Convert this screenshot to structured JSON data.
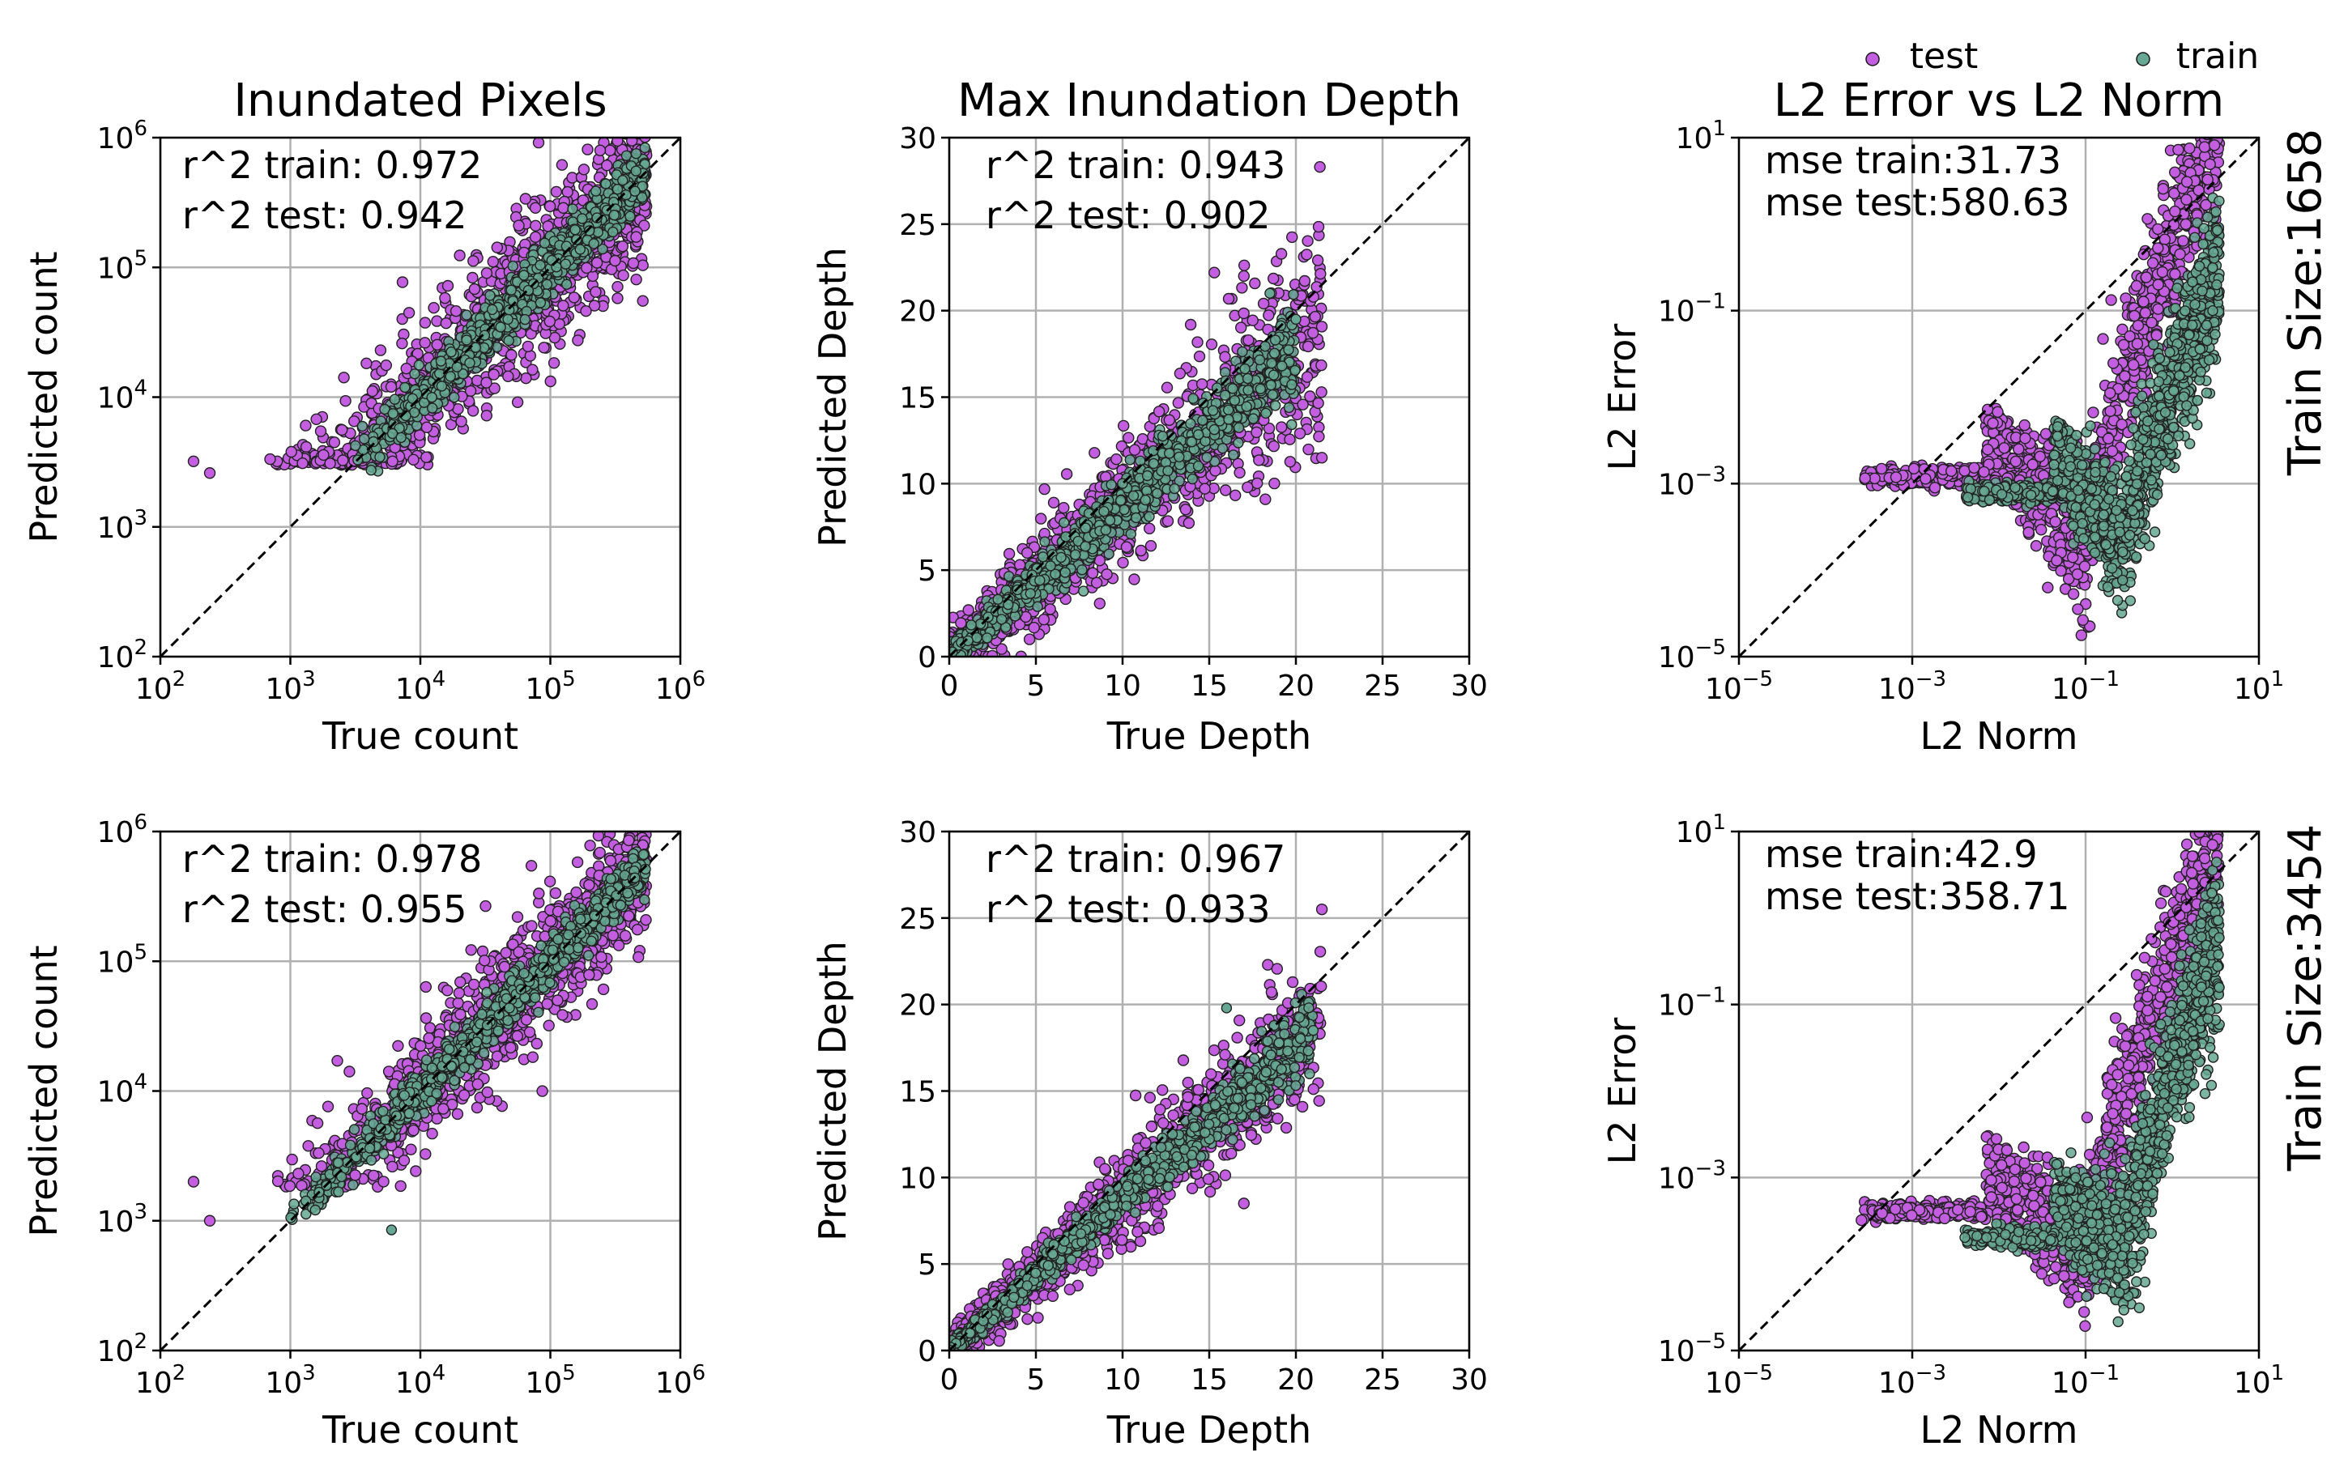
{
  "legend": {
    "position": "top-right",
    "entries": [
      {
        "label": "test",
        "color": "#c45ee0"
      },
      {
        "label": "train",
        "color": "#66a893"
      }
    ]
  },
  "rows": [
    {
      "label": "Train Size:1658"
    },
    {
      "label": "Train Size:3454"
    }
  ],
  "chart_data": [
    {
      "type": "scatter",
      "row": 0,
      "col": 0,
      "title": "Inundated Pixels",
      "xlabel": "True count",
      "ylabel": "Predicted count",
      "scale": "log",
      "xlim": [
        100,
        1000000
      ],
      "ylim": [
        100,
        1000000
      ],
      "xtick_labels": [
        [
          "10",
          "2"
        ],
        [
          "10",
          "3"
        ],
        [
          "10",
          "4"
        ],
        [
          "10",
          "5"
        ],
        [
          "10",
          "6"
        ]
      ],
      "ytick_labels": [
        [
          "10",
          "2"
        ],
        [
          "10",
          "3"
        ],
        [
          "10",
          "4"
        ],
        [
          "10",
          "5"
        ],
        [
          "10",
          "6"
        ]
      ],
      "annotations": [
        "r^2 train: 0.972",
        "r^2 test: 0.942"
      ],
      "grid": true,
      "diagonal": true,
      "series": [
        {
          "name": "test",
          "n": 1100,
          "x_range": [
            600,
            550000
          ],
          "spread": 0.32,
          "floor": 3000,
          "outliers": [
            [
              180,
              3200
            ],
            [
              240,
              2600
            ]
          ]
        },
        {
          "name": "train",
          "n": 1400,
          "x_range": [
            3000,
            540000
          ],
          "spread": 0.1,
          "floor": 2600,
          "outliers": []
        }
      ]
    },
    {
      "type": "scatter",
      "row": 0,
      "col": 1,
      "title": "Max Inundation Depth",
      "xlabel": "True Depth",
      "ylabel": "Predicted Depth",
      "scale": "linear",
      "xlim": [
        0,
        30
      ],
      "ylim": [
        0,
        30
      ],
      "xticks": [
        0,
        5,
        10,
        15,
        20,
        25,
        30
      ],
      "yticks": [
        0,
        5,
        10,
        15,
        20,
        25,
        30
      ],
      "annotations": [
        "r^2 train: 0.943",
        "r^2 test: 0.902"
      ],
      "grid": true,
      "diagonal": true,
      "series": [
        {
          "name": "test",
          "n": 1200,
          "x_range": [
            0,
            21.5
          ],
          "spread": 2.6,
          "floor": 0,
          "outliers": [
            [
              17,
              22
            ],
            [
              21.5,
              11.5
            ]
          ]
        },
        {
          "name": "train",
          "n": 1300,
          "x_range": [
            0,
            20
          ],
          "spread": 1.1,
          "floor": 0,
          "outliers": [
            [
              18.5,
              21
            ],
            [
              20,
              19.5
            ]
          ]
        }
      ]
    },
    {
      "type": "scatter",
      "row": 0,
      "col": 2,
      "title": "L2 Error vs L2 Norm",
      "xlabel": "L2 Norm",
      "ylabel": "L2 Error",
      "scale": "log",
      "xlim": [
        1e-05,
        10
      ],
      "ylim": [
        1e-05,
        10
      ],
      "xtick_labels": [
        [
          "10",
          "−5"
        ],
        [
          "10",
          "−3"
        ],
        [
          "10",
          "−1"
        ],
        [
          "10",
          "1"
        ]
      ],
      "ytick_labels": [
        [
          "10",
          "−5"
        ],
        [
          "10",
          "−3"
        ],
        [
          "10",
          "−1"
        ],
        [
          "10",
          "1"
        ]
      ],
      "annotations": [
        "mse train:31.73",
        "mse test:580.63"
      ],
      "grid": true,
      "diagonal": true,
      "series": [
        {
          "name": "test",
          "n": 1200,
          "x_range": [
            0.00025,
            3.5
          ],
          "shape": "l2",
          "plateau": 0.0012,
          "dip": 8e-05,
          "peak": 8
        },
        {
          "name": "train",
          "n": 1500,
          "x_range": [
            0.004,
            3.5
          ],
          "shape": "l2",
          "plateau": 0.0008,
          "dip": 8e-05,
          "peak": 0.15
        }
      ]
    },
    {
      "type": "scatter",
      "row": 1,
      "col": 0,
      "title": "",
      "xlabel": "True count",
      "ylabel": "Predicted count",
      "scale": "log",
      "xlim": [
        100,
        1000000
      ],
      "ylim": [
        100,
        1000000
      ],
      "xtick_labels": [
        [
          "10",
          "2"
        ],
        [
          "10",
          "3"
        ],
        [
          "10",
          "4"
        ],
        [
          "10",
          "5"
        ],
        [
          "10",
          "6"
        ]
      ],
      "ytick_labels": [
        [
          "10",
          "2"
        ],
        [
          "10",
          "3"
        ],
        [
          "10",
          "4"
        ],
        [
          "10",
          "5"
        ],
        [
          "10",
          "6"
        ]
      ],
      "annotations": [
        "r^2 train: 0.978",
        "r^2 test: 0.955"
      ],
      "grid": true,
      "diagonal": true,
      "series": [
        {
          "name": "test",
          "n": 1100,
          "x_range": [
            700,
            550000
          ],
          "spread": 0.26,
          "floor": 1800,
          "outliers": [
            [
              180,
              2000
            ],
            [
              240,
              1000
            ]
          ]
        },
        {
          "name": "train",
          "n": 1400,
          "x_range": [
            900,
            540000
          ],
          "spread": 0.08,
          "floor": 1000,
          "outliers": [
            [
              6000,
              850
            ]
          ]
        }
      ]
    },
    {
      "type": "scatter",
      "row": 1,
      "col": 1,
      "title": "",
      "xlabel": "True Depth",
      "ylabel": "Predicted Depth",
      "scale": "linear",
      "xlim": [
        0,
        30
      ],
      "ylim": [
        0,
        30
      ],
      "xticks": [
        0,
        5,
        10,
        15,
        20,
        25,
        30
      ],
      "yticks": [
        0,
        5,
        10,
        15,
        20,
        25,
        30
      ],
      "annotations": [
        "r^2 train: 0.967",
        "r^2 test: 0.933"
      ],
      "grid": true,
      "diagonal": true,
      "series": [
        {
          "name": "test",
          "n": 1200,
          "x_range": [
            0,
            21.5
          ],
          "spread": 1.8,
          "floor": 0,
          "outliers": [
            [
              21.5,
              25.5
            ],
            [
              17,
              8.5
            ]
          ]
        },
        {
          "name": "train",
          "n": 1300,
          "x_range": [
            0,
            21
          ],
          "spread": 0.8,
          "floor": 0,
          "outliers": [
            [
              16,
              19.8
            ],
            [
              21,
              18.5
            ]
          ]
        }
      ]
    },
    {
      "type": "scatter",
      "row": 1,
      "col": 2,
      "title": "",
      "xlabel": "L2 Norm",
      "ylabel": "L2 Error",
      "scale": "log",
      "xlim": [
        1e-05,
        10
      ],
      "ylim": [
        1e-05,
        10
      ],
      "xtick_labels": [
        [
          "10",
          "−5"
        ],
        [
          "10",
          "−3"
        ],
        [
          "10",
          "−1"
        ],
        [
          "10",
          "1"
        ]
      ],
      "ytick_labels": [
        [
          "10",
          "−5"
        ],
        [
          "10",
          "−3"
        ],
        [
          "10",
          "−1"
        ],
        [
          "10",
          "1"
        ]
      ],
      "annotations": [
        "mse train:42.9",
        "mse test:358.71"
      ],
      "grid": true,
      "diagonal": true,
      "series": [
        {
          "name": "test",
          "n": 1200,
          "x_range": [
            0.00025,
            3.5
          ],
          "shape": "l2",
          "plateau": 0.0004,
          "dip": 5e-05,
          "peak": 4
        },
        {
          "name": "train",
          "n": 1500,
          "x_range": [
            0.004,
            3.5
          ],
          "shape": "l2",
          "plateau": 0.0002,
          "dip": 5e-05,
          "peak": 0.3
        }
      ]
    }
  ]
}
